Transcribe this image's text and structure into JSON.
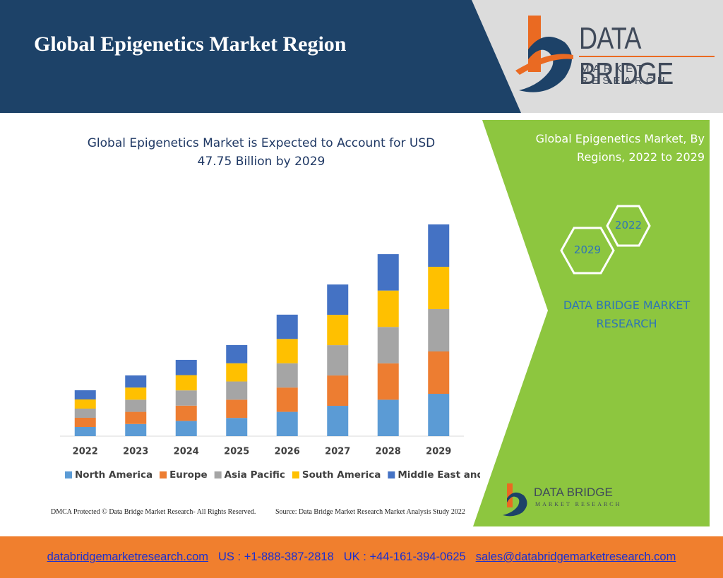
{
  "header": {
    "title": "Global Epigenetics Market Region",
    "logo_main": "DATA BRIDGE",
    "logo_sub": "MARKET RESEARCH"
  },
  "chart_data": {
    "type": "stacked_bar",
    "title": "Global Epigenetics Market is Expected to Account for USD 47.75 Billion by 2029",
    "categories": [
      "2022",
      "2023",
      "2024",
      "2025",
      "2026",
      "2027",
      "2028",
      "2029"
    ],
    "series": [
      {
        "name": "North America",
        "color": "#5b9bd5",
        "values": [
          2.07,
          2.74,
          3.44,
          4.11,
          5.48,
          6.84,
          8.21,
          9.55
        ]
      },
      {
        "name": "Europe",
        "color": "#ed7d31",
        "values": [
          2.07,
          2.74,
          3.44,
          4.11,
          5.48,
          6.84,
          8.21,
          9.55
        ]
      },
      {
        "name": "Asia Pacific",
        "color": "#a5a5a5",
        "values": [
          2.07,
          2.74,
          3.44,
          4.11,
          5.48,
          6.84,
          8.21,
          9.55
        ]
      },
      {
        "name": "South America",
        "color": "#ffc000",
        "values": [
          2.07,
          2.74,
          3.44,
          4.11,
          5.48,
          6.84,
          8.21,
          9.55
        ]
      },
      {
        "name": "Middle East and Africa",
        "color": "#4472c4",
        "values": [
          2.07,
          2.74,
          3.44,
          4.11,
          5.48,
          6.84,
          8.21,
          9.55
        ]
      }
    ],
    "legend": "bottom"
  },
  "notes": {
    "copyright": "DMCA Protected © Data Bridge Market Research- All Rights Reserved.",
    "source": "Source: Data Bridge Market Research Market Analysis Study 2022"
  },
  "panel": {
    "title": "Global Epigenetics Market, By Regions, 2022 to 2029",
    "hexagons": [
      "2022",
      "2029"
    ],
    "brand": "DATA BRIDGE MARKET RESEARCH",
    "logo_main": "DATA BRIDGE",
    "logo_sub": "MARKET RESEARCH"
  },
  "footer": {
    "website": "databridgemarketresearch.com",
    "us_phone": "US : +1-888-387-2818",
    "uk_phone": "UK : +44-161-394-0625",
    "email": "sales@databridgemarketresearch.com"
  }
}
